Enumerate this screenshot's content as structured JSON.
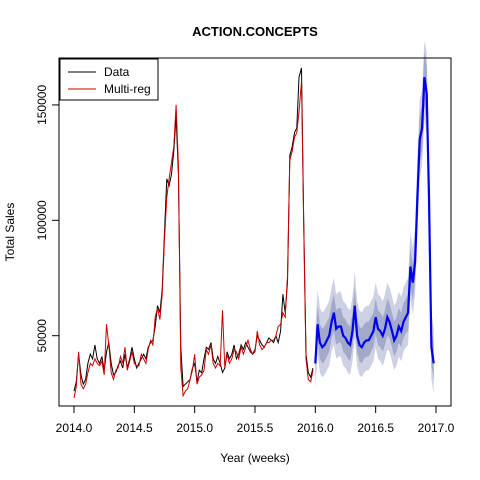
{
  "chart_data": {
    "type": "line",
    "title": "ACTION.CONCEPTS",
    "xlabel": "Year (weeks)",
    "ylabel": "Total Sales",
    "xlim": [
      2014.0,
      2017.0
    ],
    "ylim": [
      20000,
      175000
    ],
    "xticks": [
      2014.0,
      2014.5,
      2015.0,
      2015.5,
      2016.0,
      2016.5,
      2017.0
    ],
    "xtick_labels": [
      "2014.0",
      "2014.5",
      "2015.0",
      "2015.5",
      "2016.0",
      "2016.5",
      "2017.0"
    ],
    "yticks": [
      50000,
      100000,
      150000
    ],
    "ytick_labels": [
      "50000",
      "100000",
      "150000"
    ],
    "legend": {
      "position": "top-left",
      "entries": [
        "Data",
        "Multi-reg"
      ]
    },
    "colors": {
      "data": "#000000",
      "multireg": "#cc0000",
      "forecast": "#0000ee",
      "band80": "#a3a9c9",
      "band95": "#cdd1e3"
    },
    "series": [
      {
        "name": "Data",
        "x": [
          2014.0,
          2014.019,
          2014.038,
          2014.058,
          2014.077,
          2014.096,
          2014.115,
          2014.135,
          2014.154,
          2014.173,
          2014.192,
          2014.212,
          2014.231,
          2014.25,
          2014.269,
          2014.288,
          2014.308,
          2014.327,
          2014.346,
          2014.365,
          2014.385,
          2014.404,
          2014.423,
          2014.442,
          2014.462,
          2014.481,
          2014.5,
          2014.519,
          2014.538,
          2014.558,
          2014.577,
          2014.596,
          2014.615,
          2014.635,
          2014.654,
          2014.673,
          2014.692,
          2014.712,
          2014.731,
          2014.75,
          2014.769,
          2014.788,
          2014.808,
          2014.827,
          2014.846,
          2014.865,
          2014.885,
          2014.904,
          2014.923,
          2014.942,
          2014.962,
          2014.981,
          2015.0,
          2015.019,
          2015.038,
          2015.058,
          2015.077,
          2015.096,
          2015.115,
          2015.135,
          2015.154,
          2015.173,
          2015.192,
          2015.212,
          2015.231,
          2015.25,
          2015.269,
          2015.288,
          2015.308,
          2015.327,
          2015.346,
          2015.365,
          2015.385,
          2015.404,
          2015.423,
          2015.442,
          2015.462,
          2015.481,
          2015.5,
          2015.519,
          2015.538,
          2015.558,
          2015.577,
          2015.596,
          2015.615,
          2015.635,
          2015.654,
          2015.673,
          2015.692,
          2015.712,
          2015.731,
          2015.75,
          2015.769,
          2015.788,
          2015.808,
          2015.827,
          2015.846,
          2015.865,
          2015.885,
          2015.904,
          2015.923,
          2015.942,
          2015.962,
          2015.981
        ],
        "values": [
          26000,
          30000,
          42000,
          33000,
          29000,
          31000,
          38000,
          42000,
          40000,
          46000,
          40000,
          38000,
          41000,
          35000,
          43000,
          47000,
          38000,
          33000,
          34000,
          37000,
          39000,
          36000,
          42000,
          36000,
          40000,
          45000,
          40000,
          36000,
          38000,
          40000,
          42000,
          40000,
          45000,
          47000,
          48000,
          54000,
          63000,
          60000,
          70000,
          95000,
          118000,
          115000,
          120000,
          130000,
          145000,
          120000,
          45000,
          28000,
          29000,
          30000,
          31000,
          36000,
          38000,
          30000,
          35000,
          34000,
          40000,
          45000,
          44000,
          47000,
          40000,
          38000,
          41000,
          38000,
          34000,
          36000,
          43000,
          40000,
          42000,
          46000,
          40000,
          42000,
          46000,
          44000,
          47000,
          45000,
          43000,
          42000,
          44000,
          50000,
          48000,
          46000,
          45000,
          47000,
          49000,
          48000,
          47000,
          50000,
          47000,
          52000,
          68000,
          60000,
          73000,
          128000,
          132000,
          138000,
          140000,
          162000,
          166000,
          100000,
          42000,
          34000,
          32000,
          36000
        ]
      },
      {
        "name": "Multi-reg",
        "x": [
          2014.0,
          2014.019,
          2014.038,
          2014.058,
          2014.077,
          2014.096,
          2014.115,
          2014.135,
          2014.154,
          2014.173,
          2014.192,
          2014.212,
          2014.231,
          2014.25,
          2014.269,
          2014.288,
          2014.308,
          2014.327,
          2014.346,
          2014.365,
          2014.385,
          2014.404,
          2014.423,
          2014.442,
          2014.462,
          2014.481,
          2014.5,
          2014.519,
          2014.538,
          2014.558,
          2014.577,
          2014.596,
          2014.615,
          2014.635,
          2014.654,
          2014.673,
          2014.692,
          2014.712,
          2014.731,
          2014.75,
          2014.769,
          2014.788,
          2014.808,
          2014.827,
          2014.846,
          2014.865,
          2014.885,
          2014.904,
          2014.923,
          2014.942,
          2014.962,
          2014.981,
          2015.0,
          2015.019,
          2015.038,
          2015.058,
          2015.077,
          2015.096,
          2015.115,
          2015.135,
          2015.154,
          2015.173,
          2015.192,
          2015.212,
          2015.231,
          2015.25,
          2015.269,
          2015.288,
          2015.308,
          2015.327,
          2015.346,
          2015.365,
          2015.385,
          2015.404,
          2015.423,
          2015.442,
          2015.462,
          2015.481,
          2015.5,
          2015.519,
          2015.538,
          2015.558,
          2015.577,
          2015.596,
          2015.615,
          2015.635,
          2015.654,
          2015.673,
          2015.692,
          2015.712,
          2015.731,
          2015.75,
          2015.769,
          2015.788,
          2015.808,
          2015.827,
          2015.846,
          2015.865,
          2015.885,
          2015.904,
          2015.923,
          2015.942,
          2015.962,
          2015.981
        ],
        "values": [
          23000,
          28000,
          43000,
          29000,
          27000,
          29000,
          34000,
          38000,
          37000,
          40000,
          38000,
          37000,
          39000,
          33000,
          55000,
          46000,
          34000,
          31000,
          35000,
          36000,
          41000,
          38000,
          45000,
          35000,
          39000,
          43000,
          38000,
          37000,
          37000,
          42000,
          40000,
          38000,
          44000,
          48000,
          46000,
          58000,
          62000,
          57000,
          68000,
          92000,
          110000,
          118000,
          125000,
          132000,
          150000,
          124000,
          36000,
          24000,
          26000,
          27000,
          31000,
          35000,
          42000,
          29000,
          32000,
          33000,
          35000,
          44000,
          42000,
          46000,
          38000,
          36000,
          38000,
          37000,
          61000,
          36000,
          42000,
          38000,
          40000,
          44000,
          43000,
          40000,
          45000,
          42000,
          45000,
          48000,
          44000,
          42000,
          43000,
          52000,
          46000,
          44000,
          45000,
          47000,
          47000,
          48000,
          48000,
          50000,
          54000,
          55000,
          60000,
          58000,
          76000,
          126000,
          130000,
          136000,
          138000,
          147000,
          160000,
          98000,
          40000,
          31000,
          30000,
          35000
        ]
      },
      {
        "name": "",
        "x": [
          2016.0,
          2016.019,
          2016.038,
          2016.058,
          2016.077,
          2016.096,
          2016.115,
          2016.135,
          2016.154,
          2016.173,
          2016.192,
          2016.212,
          2016.231,
          2016.25,
          2016.269,
          2016.288,
          2016.308,
          2016.327,
          2016.346,
          2016.365,
          2016.385,
          2016.404,
          2016.423,
          2016.442,
          2016.462,
          2016.481,
          2016.5,
          2016.519,
          2016.538,
          2016.558,
          2016.577,
          2016.596,
          2016.615,
          2016.635,
          2016.654,
          2016.673,
          2016.692,
          2016.712,
          2016.731,
          2016.75,
          2016.769,
          2016.788,
          2016.808,
          2016.827,
          2016.846,
          2016.865,
          2016.885,
          2016.904,
          2016.923,
          2016.942,
          2016.962,
          2016.981
        ],
        "values": [
          38000,
          55000,
          47000,
          45000,
          46000,
          48000,
          50000,
          56000,
          60000,
          53000,
          54000,
          54000,
          50000,
          49000,
          47000,
          46000,
          52000,
          63000,
          50000,
          46000,
          45000,
          47000,
          48000,
          48000,
          50000,
          52000,
          58000,
          53000,
          52000,
          50000,
          53000,
          58000,
          56000,
          52000,
          48000,
          50000,
          54000,
          52000,
          56000,
          58000,
          60000,
          80000,
          73000,
          82000,
          110000,
          135000,
          140000,
          162000,
          155000,
          110000,
          45000,
          38000
        ],
        "lower80": [
          33000,
          48000,
          40000,
          38000,
          39000,
          41000,
          43000,
          49000,
          52000,
          46000,
          47000,
          47000,
          43000,
          42000,
          40000,
          39000,
          45000,
          55000,
          43000,
          39000,
          38000,
          40000,
          41000,
          41000,
          43000,
          45000,
          51000,
          46000,
          45000,
          43000,
          46000,
          50000,
          49000,
          45000,
          41000,
          43000,
          47000,
          45000,
          49000,
          51000,
          52000,
          72000,
          65000,
          74000,
          100000,
          125000,
          130000,
          150000,
          143000,
          100000,
          37000,
          31000
        ],
        "upper80": [
          45000,
          63000,
          55000,
          53000,
          54000,
          56000,
          58000,
          64000,
          68000,
          61000,
          62000,
          62000,
          58000,
          57000,
          55000,
          54000,
          60000,
          71000,
          58000,
          54000,
          53000,
          55000,
          56000,
          56000,
          58000,
          60000,
          66000,
          61000,
          60000,
          58000,
          61000,
          66000,
          64000,
          60000,
          56000,
          58000,
          62000,
          60000,
          64000,
          66000,
          68000,
          88000,
          81000,
          90000,
          120000,
          145000,
          150000,
          173000,
          167000,
          120000,
          53000,
          46000
        ],
        "lower95": [
          27000,
          42000,
          34000,
          32000,
          33000,
          35000,
          37000,
          43000,
          46000,
          40000,
          41000,
          41000,
          37000,
          36000,
          34000,
          33000,
          39000,
          49000,
          37000,
          33000,
          32000,
          34000,
          35000,
          35000,
          37000,
          39000,
          45000,
          40000,
          39000,
          37000,
          40000,
          44000,
          43000,
          39000,
          35000,
          37000,
          41000,
          39000,
          43000,
          45000,
          46000,
          66000,
          59000,
          68000,
          94000,
          118000,
          124000,
          144000,
          137000,
          94000,
          31000,
          25000
        ],
        "upper95": [
          52000,
          70000,
          62000,
          60000,
          61000,
          63000,
          65000,
          71000,
          75000,
          68000,
          69000,
          69000,
          65000,
          64000,
          62000,
          61000,
          67000,
          78000,
          65000,
          61000,
          60000,
          62000,
          63000,
          63000,
          65000,
          67000,
          73000,
          68000,
          67000,
          65000,
          68000,
          73000,
          71000,
          67000,
          63000,
          65000,
          69000,
          67000,
          71000,
          73000,
          75000,
          95000,
          88000,
          97000,
          127000,
          152000,
          157000,
          178000,
          173000,
          127000,
          60000,
          53000
        ]
      }
    ]
  }
}
